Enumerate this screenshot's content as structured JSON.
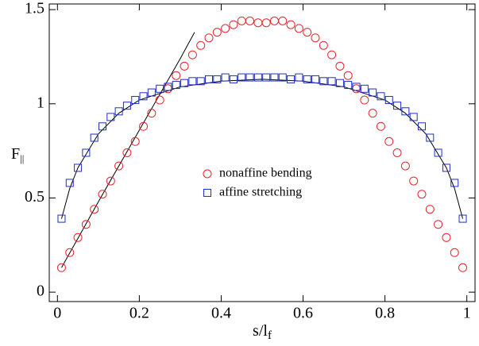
{
  "chart_data": {
    "type": "scatter",
    "xlabel": {
      "text": "s/l",
      "sub": "f"
    },
    "ylabel": {
      "text": "F",
      "sub": "||"
    },
    "x": [
      0.01,
      0.03,
      0.05,
      0.07,
      0.09,
      0.11,
      0.13,
      0.15,
      0.17,
      0.19,
      0.21,
      0.23,
      0.25,
      0.27,
      0.29,
      0.31,
      0.33,
      0.35,
      0.37,
      0.39,
      0.41,
      0.43,
      0.45,
      0.47,
      0.49,
      0.51,
      0.53,
      0.55,
      0.57,
      0.59,
      0.61,
      0.63,
      0.65,
      0.67,
      0.69,
      0.71,
      0.73,
      0.75,
      0.77,
      0.79,
      0.81,
      0.83,
      0.85,
      0.87,
      0.89,
      0.91,
      0.93,
      0.95,
      0.97,
      0.99
    ],
    "series": [
      {
        "name": "nonaffine bending",
        "color": "#e8242b",
        "marker": "circle",
        "values": [
          0.13,
          0.21,
          0.29,
          0.36,
          0.44,
          0.52,
          0.59,
          0.67,
          0.74,
          0.8,
          0.88,
          0.95,
          1.02,
          1.08,
          1.15,
          1.2,
          1.26,
          1.31,
          1.35,
          1.38,
          1.4,
          1.42,
          1.44,
          1.44,
          1.43,
          1.43,
          1.44,
          1.44,
          1.42,
          1.4,
          1.38,
          1.35,
          1.31,
          1.26,
          1.2,
          1.15,
          1.08,
          1.02,
          0.95,
          0.88,
          0.8,
          0.74,
          0.67,
          0.59,
          0.52,
          0.44,
          0.36,
          0.29,
          0.21,
          0.13
        ]
      },
      {
        "name": "affine stretching",
        "color": "#1f2fc4",
        "marker": "square",
        "values": [
          0.39,
          0.58,
          0.66,
          0.74,
          0.82,
          0.88,
          0.93,
          0.96,
          0.99,
          1.02,
          1.04,
          1.06,
          1.08,
          1.09,
          1.1,
          1.11,
          1.12,
          1.12,
          1.13,
          1.13,
          1.14,
          1.13,
          1.14,
          1.14,
          1.14,
          1.14,
          1.14,
          1.14,
          1.13,
          1.14,
          1.13,
          1.13,
          1.12,
          1.12,
          1.11,
          1.1,
          1.09,
          1.08,
          1.06,
          1.04,
          1.02,
          0.99,
          0.96,
          0.93,
          0.88,
          0.82,
          0.74,
          0.66,
          0.58,
          0.39
        ]
      }
    ],
    "lines": [
      {
        "color": "#000000",
        "x": [
          0.01,
          0.03,
          0.05,
          0.1,
          0.15,
          0.2,
          0.3,
          0.4,
          0.5,
          0.6,
          0.7,
          0.8,
          0.85,
          0.9,
          0.95,
          0.97,
          0.99
        ],
        "values": [
          0.39,
          0.55,
          0.66,
          0.84,
          0.95,
          1.02,
          1.09,
          1.12,
          1.13,
          1.12,
          1.09,
          1.02,
          0.95,
          0.84,
          0.66,
          0.55,
          0.39
        ]
      },
      {
        "color": "#000000",
        "x": [
          0.01,
          0.1,
          0.2,
          0.3,
          0.335
        ],
        "values": [
          0.13,
          0.48,
          0.86,
          1.24,
          1.38
        ]
      }
    ],
    "xlim": [
      -0.02,
      1.02
    ],
    "ylim": [
      -0.05,
      1.53
    ],
    "xticks": [
      0,
      0.2,
      0.4,
      0.6,
      0.8,
      1
    ],
    "yticks": [
      0,
      0.5,
      1,
      1.5
    ],
    "legend": "center"
  }
}
